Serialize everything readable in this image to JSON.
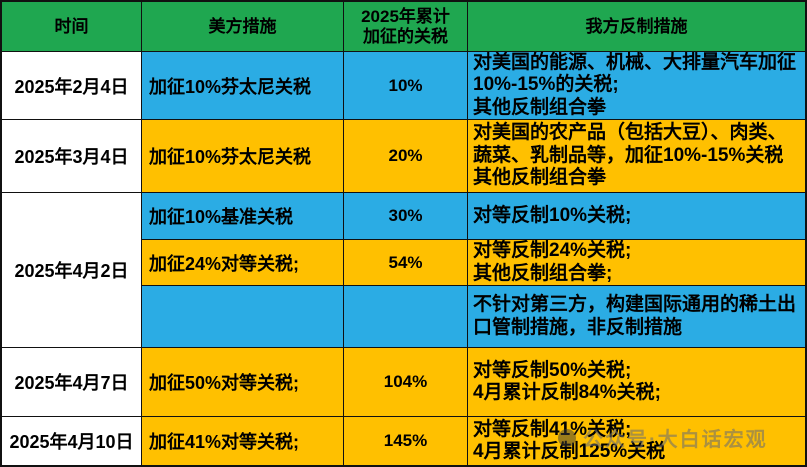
{
  "header": {
    "time": "时间",
    "us_measures": "美方措施",
    "cumulative": "2025年累计\n加征的关税",
    "counter": "我方反制措施"
  },
  "rows": [
    {
      "date": "2025年2月4日",
      "us": "加征10%芬太尼关税",
      "cumulative": "10%",
      "counter": "对美国的能源、机械、大排量汽车加征10%-15%的关税;\n其他反制组合拳"
    },
    {
      "date": "2025年3月4日",
      "us": "加征10%芬太尼关税",
      "cumulative": "20%",
      "counter": "对美国的农产品（包括大豆）、肉类、蔬菜、乳制品等，加征10%-15%关税\n其他反制组合拳"
    },
    {
      "date": "2025年4月2日",
      "us": "加征10%基准关税",
      "cumulative": "30%",
      "counter": "对等反制10%关税;"
    },
    {
      "date": "",
      "us": "加征24%对等关税;",
      "cumulative": "54%",
      "counter": "对等反制24%关税;\n其他反制组合拳;"
    },
    {
      "date": "",
      "us": "",
      "cumulative": "",
      "counter": "不针对第三方，构建国际通用的稀土出口管制措施，非反制措施"
    },
    {
      "date": "2025年4月7日",
      "us": "加征50%对等关税;",
      "cumulative": "104%",
      "counter": "对等反制50%关税;\n4月累计反制84%关税;"
    },
    {
      "date": "2025年4月10日",
      "us": "加征41%对等关税;",
      "cumulative": "145%",
      "counter": "对等反制41%关税;\n4月累计反制125%关税"
    }
  ],
  "watermark": {
    "icon": "official-account-logo",
    "text": "公众号·大白话宏观"
  },
  "colors": {
    "header_green": "#1FA750",
    "blue": "#2BACE4",
    "orange": "#FFC000",
    "date_bg": "#FFFFFF",
    "border": "#111111",
    "text": "#000000"
  }
}
